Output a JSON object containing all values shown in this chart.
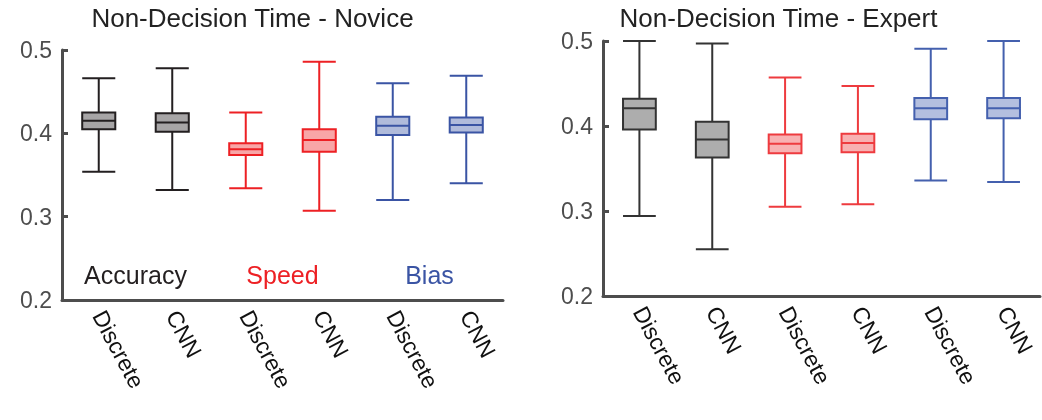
{
  "chart_data": [
    {
      "type": "box",
      "title": "Non-Decision Time - Novice",
      "categories": [
        "Discrete",
        "CNN",
        "Discrete",
        "CNN",
        "Discrete",
        "CNN"
      ],
      "ylim": [
        0.2,
        0.5
      ],
      "yticks": [
        0.2,
        0.3,
        0.4,
        0.5
      ],
      "grid": false,
      "series": [
        {
          "name": "Accuracy",
          "color": "#231f20",
          "boxes": [
            {
              "low": 0.354,
              "q1": 0.405,
              "median": 0.415,
              "q3": 0.425,
              "high": 0.466
            },
            {
              "low": 0.332,
              "q1": 0.402,
              "median": 0.413,
              "q3": 0.424,
              "high": 0.478
            },
            null,
            null,
            null,
            null
          ]
        },
        {
          "name": "Speed",
          "color": "#ed2024",
          "boxes": [
            null,
            null,
            {
              "low": 0.334,
              "q1": 0.374,
              "median": 0.381,
              "q3": 0.388,
              "high": 0.425
            },
            {
              "low": 0.307,
              "q1": 0.378,
              "median": 0.392,
              "q3": 0.405,
              "high": 0.486
            },
            null,
            null
          ]
        },
        {
          "name": "Bias",
          "color": "#3a54a4",
          "boxes": [
            null,
            null,
            null,
            null,
            {
              "low": 0.32,
              "q1": 0.398,
              "median": 0.409,
              "q3": 0.42,
              "high": 0.46
            },
            {
              "low": 0.34,
              "q1": 0.401,
              "median": 0.41,
              "q3": 0.419,
              "high": 0.469
            }
          ]
        }
      ]
    },
    {
      "type": "box",
      "title": "Non-Decision Time - Expert",
      "categories": [
        "Discrete",
        "CNN",
        "Discrete",
        "CNN",
        "Discrete",
        "CNN"
      ],
      "ylim": [
        0.2,
        0.5
      ],
      "yticks": [
        0.2,
        0.3,
        0.4,
        0.5
      ],
      "grid": false,
      "series": [
        {
          "color": "#333333",
          "boxes": [
            {
              "low": 0.294,
              "q1": 0.396,
              "median": 0.421,
              "q3": 0.432,
              "high": 0.5
            },
            {
              "low": 0.255,
              "q1": 0.363,
              "median": 0.384,
              "q3": 0.405,
              "high": 0.497
            },
            null,
            null,
            null,
            null
          ]
        },
        {
          "color": "#ee3b3f",
          "boxes": [
            null,
            null,
            {
              "low": 0.305,
              "q1": 0.368,
              "median": 0.379,
              "q3": 0.39,
              "high": 0.457
            },
            {
              "low": 0.308,
              "q1": 0.369,
              "median": 0.38,
              "q3": 0.391,
              "high": 0.447
            },
            null,
            null
          ]
        },
        {
          "color": "#4460ae",
          "boxes": [
            null,
            null,
            null,
            null,
            {
              "low": 0.336,
              "q1": 0.408,
              "median": 0.421,
              "q3": 0.433,
              "high": 0.491
            },
            {
              "low": 0.334,
              "q1": 0.409,
              "median": 0.421,
              "q3": 0.433,
              "high": 0.5
            }
          ]
        }
      ]
    }
  ]
}
